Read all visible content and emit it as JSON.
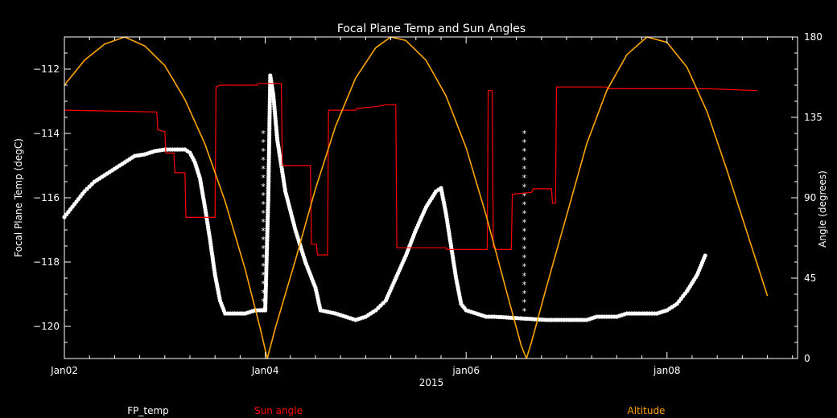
{
  "chart_data": {
    "type": "line",
    "title": "Focal Plane Temp and Sun Angles",
    "xlabel": "2015",
    "ylabel_left": "Focal Plane Temp (degC)",
    "ylabel_right": "Angle (degrees)",
    "x_unit": "days since Jan02 00:00",
    "xlim": [
      0,
      7.3
    ],
    "ylim_left": [
      -121,
      -111
    ],
    "ylim_right": [
      0,
      180
    ],
    "x_ticks": [
      {
        "value": 0,
        "label": "Jan02"
      },
      {
        "value": 2,
        "label": "Jan04"
      },
      {
        "value": 4,
        "label": "jan06"
      },
      {
        "value": 6,
        "label": "jan08"
      }
    ],
    "y_ticks_left": [
      {
        "value": -112,
        "label": "−112"
      },
      {
        "value": -114,
        "label": "−114"
      },
      {
        "value": -116,
        "label": "−116"
      },
      {
        "value": -118,
        "label": "−118"
      },
      {
        "value": -120,
        "label": "−120"
      }
    ],
    "y_ticks_right": [
      {
        "value": 0,
        "label": "0"
      },
      {
        "value": 45,
        "label": "45"
      },
      {
        "value": 90,
        "label": "90"
      },
      {
        "value": 135,
        "label": "135"
      },
      {
        "value": 180,
        "label": "180"
      }
    ],
    "series": [
      {
        "name": "FP_temp",
        "axis": "left",
        "style": "markers",
        "color": "#ffffff",
        "points": [
          [
            0.0,
            -116.6
          ],
          [
            0.1,
            -116.2
          ],
          [
            0.2,
            -115.8
          ],
          [
            0.3,
            -115.5
          ],
          [
            0.4,
            -115.3
          ],
          [
            0.5,
            -115.1
          ],
          [
            0.6,
            -114.9
          ],
          [
            0.7,
            -114.7
          ],
          [
            0.8,
            -114.65
          ],
          [
            0.9,
            -114.55
          ],
          [
            1.0,
            -114.5
          ],
          [
            1.1,
            -114.5
          ],
          [
            1.2,
            -114.5
          ],
          [
            1.25,
            -114.6
          ],
          [
            1.3,
            -114.9
          ],
          [
            1.35,
            -115.4
          ],
          [
            1.4,
            -116.3
          ],
          [
            1.45,
            -117.3
          ],
          [
            1.5,
            -118.4
          ],
          [
            1.55,
            -119.2
          ],
          [
            1.6,
            -119.6
          ],
          [
            1.7,
            -119.6
          ],
          [
            1.8,
            -119.6
          ],
          [
            1.9,
            -119.5
          ],
          [
            2.0,
            -119.5
          ],
          [
            2.03,
            -116.0
          ],
          [
            2.05,
            -112.2
          ],
          [
            2.08,
            -112.8
          ],
          [
            2.12,
            -114.2
          ],
          [
            2.2,
            -115.8
          ],
          [
            2.3,
            -117.0
          ],
          [
            2.4,
            -118.0
          ],
          [
            2.5,
            -118.8
          ],
          [
            2.55,
            -119.5
          ],
          [
            2.7,
            -119.6
          ],
          [
            2.8,
            -119.7
          ],
          [
            2.9,
            -119.8
          ],
          [
            3.0,
            -119.7
          ],
          [
            3.1,
            -119.5
          ],
          [
            3.2,
            -119.2
          ],
          [
            3.3,
            -118.5
          ],
          [
            3.4,
            -117.8
          ],
          [
            3.5,
            -117.0
          ],
          [
            3.6,
            -116.3
          ],
          [
            3.7,
            -115.8
          ],
          [
            3.75,
            -115.7
          ],
          [
            3.8,
            -116.5
          ],
          [
            3.85,
            -117.5
          ],
          [
            3.9,
            -118.5
          ],
          [
            3.95,
            -119.3
          ],
          [
            4.0,
            -119.5
          ],
          [
            4.1,
            -119.6
          ],
          [
            4.2,
            -119.7
          ],
          [
            4.28,
            -119.7
          ],
          [
            4.8,
            -119.8
          ],
          [
            4.9,
            -119.8
          ],
          [
            5.0,
            -119.8
          ],
          [
            5.1,
            -119.8
          ],
          [
            5.2,
            -119.8
          ],
          [
            5.3,
            -119.7
          ],
          [
            5.4,
            -119.7
          ],
          [
            5.5,
            -119.7
          ],
          [
            5.6,
            -119.6
          ],
          [
            5.7,
            -119.6
          ],
          [
            5.8,
            -119.6
          ],
          [
            5.9,
            -119.6
          ],
          [
            6.0,
            -119.5
          ],
          [
            6.1,
            -119.3
          ],
          [
            6.2,
            -118.9
          ],
          [
            6.3,
            -118.4
          ],
          [
            6.38,
            -117.8
          ]
        ],
        "transients": [
          {
            "x": 1.98,
            "from": -119.5,
            "to": -114.0
          },
          {
            "x": 4.58,
            "from": -114.0,
            "to": -119.8
          }
        ]
      },
      {
        "name": "Sun angle",
        "axis": "right",
        "style": "step",
        "color": "#ff0000",
        "points": [
          [
            0.0,
            139
          ],
          [
            0.92,
            138
          ],
          [
            0.93,
            128
          ],
          [
            1.0,
            127
          ],
          [
            1.01,
            115
          ],
          [
            1.09,
            115
          ],
          [
            1.1,
            104
          ],
          [
            1.2,
            104
          ],
          [
            1.21,
            79
          ],
          [
            1.5,
            79
          ],
          [
            1.51,
            152
          ],
          [
            1.55,
            153
          ],
          [
            1.92,
            153
          ],
          [
            1.93,
            154
          ],
          [
            2.16,
            154
          ],
          [
            2.17,
            108
          ],
          [
            2.45,
            108
          ],
          [
            2.46,
            64
          ],
          [
            2.51,
            64
          ],
          [
            2.52,
            58
          ],
          [
            2.62,
            58
          ],
          [
            2.63,
            139
          ],
          [
            2.9,
            139
          ],
          [
            2.91,
            140
          ],
          [
            3.1,
            141
          ],
          [
            3.2,
            142
          ],
          [
            3.3,
            142
          ],
          [
            3.31,
            62
          ],
          [
            3.8,
            62
          ],
          [
            3.81,
            61
          ],
          [
            4.21,
            61
          ],
          [
            4.22,
            150
          ],
          [
            4.26,
            150
          ],
          [
            4.27,
            62
          ],
          [
            4.29,
            62
          ],
          [
            4.3,
            61
          ],
          [
            4.45,
            61
          ],
          [
            4.46,
            92
          ],
          [
            4.65,
            93
          ],
          [
            4.67,
            95
          ],
          [
            4.85,
            95
          ],
          [
            4.86,
            87
          ],
          [
            4.89,
            87
          ],
          [
            4.9,
            152
          ],
          [
            5.4,
            152
          ],
          [
            5.41,
            151
          ],
          [
            6.4,
            151
          ],
          [
            6.9,
            150
          ]
        ]
      },
      {
        "name": "Altitude",
        "axis": "right",
        "style": "line",
        "color": "#ffa500",
        "points": [
          [
            0.0,
            153
          ],
          [
            0.2,
            167
          ],
          [
            0.4,
            176
          ],
          [
            0.6,
            180
          ],
          [
            0.8,
            175
          ],
          [
            1.0,
            164
          ],
          [
            1.2,
            145
          ],
          [
            1.4,
            120
          ],
          [
            1.6,
            88
          ],
          [
            1.8,
            50
          ],
          [
            1.95,
            17
          ],
          [
            2.02,
            0
          ],
          [
            2.1,
            17
          ],
          [
            2.3,
            55
          ],
          [
            2.5,
            95
          ],
          [
            2.7,
            130
          ],
          [
            2.9,
            157
          ],
          [
            3.1,
            174
          ],
          [
            3.25,
            180
          ],
          [
            3.4,
            178
          ],
          [
            3.6,
            167
          ],
          [
            3.8,
            147
          ],
          [
            4.0,
            118
          ],
          [
            4.2,
            80
          ],
          [
            4.4,
            38
          ],
          [
            4.55,
            7
          ],
          [
            4.6,
            0
          ],
          [
            4.65,
            9
          ],
          [
            4.8,
            40
          ],
          [
            5.0,
            80
          ],
          [
            5.2,
            120
          ],
          [
            5.4,
            150
          ],
          [
            5.6,
            170
          ],
          [
            5.8,
            180
          ],
          [
            6.0,
            177
          ],
          [
            6.2,
            163
          ],
          [
            6.4,
            138
          ],
          [
            6.6,
            105
          ],
          [
            6.8,
            70
          ],
          [
            7.0,
            35
          ]
        ]
      }
    ],
    "legend": [
      "FP_temp",
      "Sun angle",
      "Altitude"
    ],
    "legend_placement": "bottom"
  }
}
